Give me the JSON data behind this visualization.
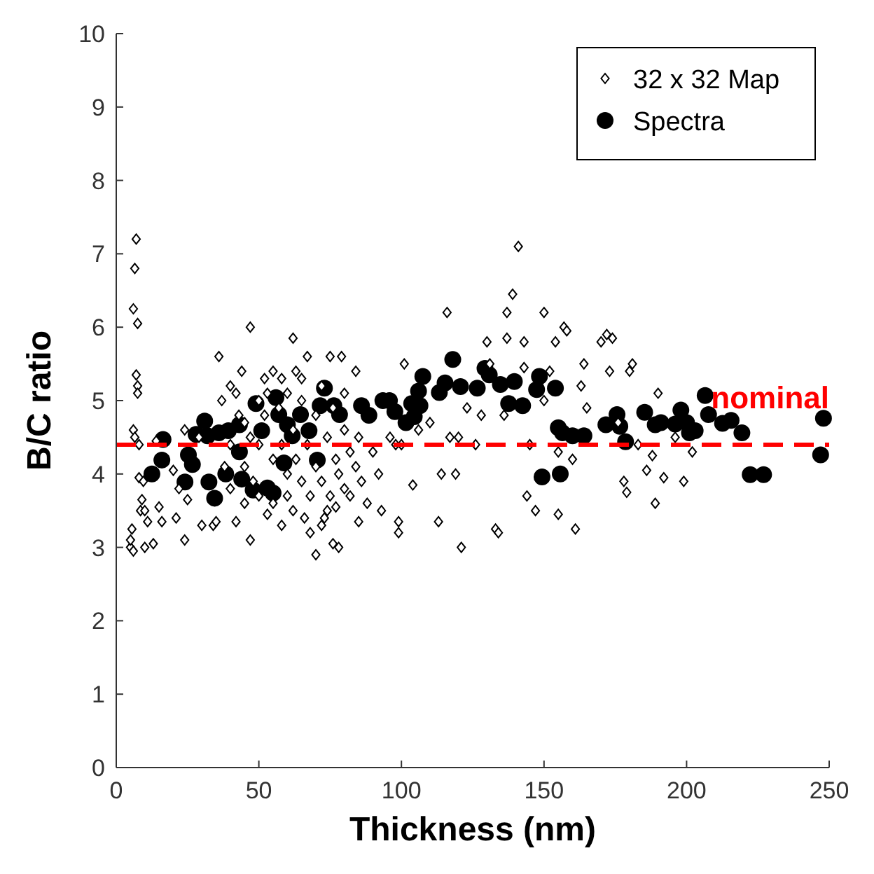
{
  "chart_data": {
    "type": "scatter",
    "xlabel": "Thickness (nm)",
    "ylabel": "B/C ratio",
    "xlim": [
      0,
      250
    ],
    "ylim": [
      0,
      10
    ],
    "xticks": [
      0,
      50,
      100,
      150,
      200,
      250
    ],
    "yticks": [
      0,
      1,
      2,
      3,
      4,
      5,
      6,
      7,
      8,
      9,
      10
    ],
    "legend": "top right",
    "series": [
      {
        "name": "32 x 32 Map",
        "color": "#000000",
        "type": "scatter",
        "marker": "diamond",
        "x": [
          5,
          5,
          6,
          5.5,
          6,
          6.5,
          6,
          6.5,
          7,
          7.5,
          7,
          7.5,
          7.5,
          8,
          8,
          9,
          8.5,
          9.5,
          10,
          10,
          11,
          13,
          14,
          16,
          15,
          20,
          21,
          22,
          24,
          24,
          25,
          29,
          30,
          34,
          35,
          36,
          37,
          38,
          40,
          42,
          44,
          42,
          45,
          47,
          47,
          50,
          52,
          53,
          55,
          58,
          62,
          63,
          60,
          65,
          67,
          68,
          70,
          72,
          74,
          75,
          76,
          78,
          79,
          80,
          82,
          84,
          85,
          86,
          88,
          90,
          92,
          93,
          96,
          98,
          99,
          99,
          100,
          101,
          104,
          106,
          110,
          114,
          113,
          116,
          117,
          119,
          120,
          121,
          123,
          126,
          128,
          130,
          131,
          133,
          134,
          136,
          137,
          137,
          139,
          141,
          143,
          143,
          144,
          145,
          147,
          150,
          150,
          152,
          154,
          155,
          155,
          157,
          158,
          160,
          161,
          163,
          164,
          165,
          170,
          172,
          173,
          174,
          176,
          178,
          179,
          180,
          181,
          183,
          186,
          188,
          189,
          190,
          192,
          196,
          199,
          202,
          40,
          40,
          45,
          45,
          48,
          50,
          50,
          52,
          55,
          55,
          57,
          58,
          60,
          60,
          62,
          63,
          65,
          65,
          67,
          68,
          70,
          70,
          72,
          72,
          74,
          75,
          76,
          77,
          78,
          80,
          80,
          82,
          84,
          85,
          58,
          53,
          47,
          43,
          62,
          66,
          73,
          77
        ],
        "values": [
          3.0,
          3.1,
          2.95,
          3.25,
          4.6,
          4.5,
          6.25,
          6.8,
          7.2,
          6.05,
          5.35,
          5.2,
          5.1,
          4.4,
          3.95,
          3.65,
          3.5,
          3.9,
          3.0,
          3.5,
          3.35,
          3.05,
          4.45,
          3.35,
          3.55,
          4.05,
          3.4,
          3.8,
          4.6,
          3.1,
          3.65,
          4.5,
          3.3,
          3.3,
          3.35,
          5.6,
          5.0,
          4.1,
          5.2,
          5.1,
          5.4,
          3.35,
          3.6,
          6.0,
          3.1,
          5.0,
          5.3,
          3.45,
          5.4,
          3.3,
          5.85,
          5.4,
          4.0,
          5.3,
          5.6,
          3.2,
          2.9,
          3.3,
          3.5,
          5.6,
          3.05,
          3.0,
          5.6,
          5.1,
          3.7,
          5.4,
          3.35,
          3.9,
          3.6,
          4.3,
          4.0,
          3.5,
          4.5,
          4.4,
          3.2,
          3.35,
          4.4,
          5.5,
          3.85,
          4.6,
          4.7,
          4.0,
          3.35,
          6.2,
          4.5,
          4.0,
          4.5,
          3.0,
          4.9,
          4.4,
          4.8,
          5.8,
          5.5,
          3.25,
          3.2,
          4.8,
          6.2,
          5.85,
          6.45,
          7.1,
          5.8,
          5.45,
          3.7,
          4.4,
          3.5,
          6.2,
          5.0,
          5.4,
          5.8,
          4.3,
          3.45,
          6.0,
          5.95,
          4.2,
          3.25,
          5.2,
          5.5,
          4.9,
          5.8,
          5.9,
          5.4,
          5.85,
          4.7,
          3.9,
          3.75,
          5.4,
          5.5,
          4.4,
          4.05,
          4.25,
          3.6,
          5.1,
          3.95,
          4.5,
          3.9,
          4.3,
          4.4,
          3.8,
          4.7,
          4.1,
          3.9,
          4.4,
          3.7,
          4.8,
          4.2,
          3.6,
          4.9,
          4.4,
          5.1,
          3.7,
          4.6,
          4.2,
          3.9,
          5.0,
          4.4,
          3.7,
          4.8,
          4.1,
          5.2,
          3.9,
          4.5,
          3.7,
          4.9,
          4.2,
          4.0,
          4.6,
          3.8,
          4.3,
          4.1,
          4.5,
          5.3,
          5.1,
          4.5,
          4.8,
          3.5,
          3.4,
          3.4,
          3.55
        ]
      },
      {
        "name": "Spectra",
        "color": "#000000",
        "type": "scatter",
        "marker": "circle",
        "x": [
          12.5,
          16.4,
          16,
          25.3,
          26.7,
          24.1,
          28,
          31,
          32.5,
          34.5,
          32,
          36,
          38.4,
          39.3,
          43.2,
          43.2,
          44,
          48,
          49,
          51,
          53,
          55,
          56,
          57,
          58.8,
          60,
          61.7,
          64.6,
          67.6,
          70.5,
          71.5,
          73,
          76.3,
          78.3,
          86,
          88.6,
          93.5,
          95.8,
          97.7,
          101.6,
          103.6,
          104.5,
          106.5,
          106,
          107.5,
          113.3,
          115.3,
          118,
          120.7,
          126.6,
          129.3,
          130.8,
          134.7,
          137.6,
          139.6,
          142.5,
          147.4,
          148.4,
          149.3,
          154,
          155,
          155.7,
          156.5,
          160,
          164,
          171.7,
          175.6,
          176.6,
          178.6,
          185.3,
          189,
          191,
          196,
          198,
          200,
          201,
          203,
          206.5,
          207.7,
          212.6,
          215.6,
          219.4,
          222.3,
          227,
          247,
          248
        ],
        "values": [
          4.0,
          4.47,
          4.19,
          4.26,
          4.13,
          3.89,
          4.54,
          4.72,
          3.89,
          3.67,
          4.52,
          4.56,
          4.0,
          4.59,
          4.67,
          4.3,
          3.93,
          3.78,
          4.96,
          4.59,
          3.81,
          3.74,
          5.04,
          4.81,
          4.15,
          4.67,
          4.52,
          4.81,
          4.59,
          4.19,
          4.93,
          5.17,
          4.93,
          4.81,
          4.93,
          4.8,
          5.0,
          5.0,
          4.85,
          4.7,
          4.96,
          4.78,
          4.93,
          5.13,
          5.33,
          5.11,
          5.24,
          5.56,
          5.19,
          5.17,
          5.44,
          5.35,
          5.22,
          4.96,
          5.26,
          4.93,
          5.15,
          5.33,
          3.96,
          5.17,
          4.63,
          4.0,
          4.56,
          4.52,
          4.52,
          4.67,
          4.81,
          4.65,
          4.44,
          4.84,
          4.67,
          4.7,
          4.68,
          4.87,
          4.7,
          4.56,
          4.59,
          5.07,
          4.81,
          4.69,
          4.73,
          4.56,
          3.99,
          3.99,
          4.26,
          4.76
        ]
      }
    ],
    "ref_lines": [
      {
        "axis": "y",
        "value": 4.4,
        "label": "nominal",
        "color": "#ff0000",
        "line_style": "dashed"
      }
    ]
  }
}
